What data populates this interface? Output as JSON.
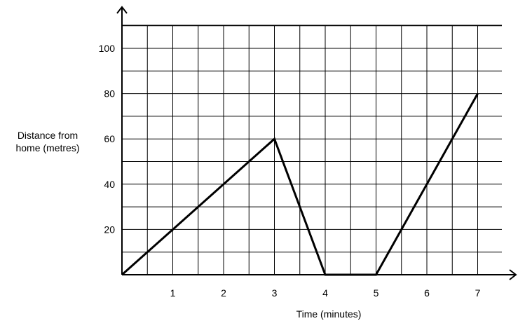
{
  "chart_data": {
    "type": "line",
    "title": "",
    "xlabel": "Time (minutes)",
    "ylabel_lines": [
      "Distance from",
      "home (metres)"
    ],
    "x_ticks": [
      1,
      2,
      3,
      4,
      5,
      6,
      7
    ],
    "y_ticks": [
      20,
      40,
      60,
      80,
      100
    ],
    "xlim": [
      0,
      7.5
    ],
    "ylim": [
      0,
      110
    ],
    "grid": true,
    "series": [
      {
        "x": [
          0,
          3,
          4,
          5,
          7
        ],
        "y": [
          0,
          60,
          0,
          0,
          80
        ]
      }
    ]
  }
}
